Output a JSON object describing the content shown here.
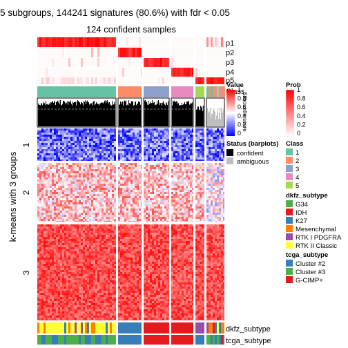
{
  "chart_data": {
    "type": "heatmap",
    "title": "5 subgroups, 144241 signatures (80.6%) with fdr < 0.05",
    "subtitle": "124 confident samples",
    "row_title": "k-means with 3 groups",
    "row_groups": [
      "1",
      "2",
      "3"
    ],
    "top_tracks": [
      "p1",
      "p2",
      "p3",
      "p4",
      "p5",
      "Class",
      "Silhouette score"
    ],
    "bottom_tracks": [
      "dkfz_subtype",
      "tcga_subtype"
    ],
    "sample_groups": [
      {
        "class": "1",
        "color": "#66C2A5"
      },
      {
        "class": "2",
        "color": "#FC8D62"
      },
      {
        "class": "3",
        "color": "#8DA0CB"
      },
      {
        "class": "4",
        "color": "#E78AC3"
      },
      {
        "class": "5",
        "color": "#A6D854"
      }
    ],
    "value_legend": {
      "title": "Value",
      "ticks": [
        "1",
        "0.8",
        "0.6",
        "0.4",
        "0.2",
        "0"
      ]
    },
    "prob_legend": {
      "title": "Prob",
      "ticks": [
        "1",
        "0.8",
        "0.6",
        "0.4",
        "0.2",
        "0"
      ]
    },
    "status_legend": {
      "title": "Status (barplots)",
      "items": [
        {
          "label": "confident",
          "color": "#000000"
        },
        {
          "label": "ambiguous",
          "color": "#BEBEBE"
        }
      ]
    },
    "class_legend": {
      "title": "Class",
      "items": [
        {
          "label": "1",
          "color": "#66C2A5"
        },
        {
          "label": "2",
          "color": "#FC8D62"
        },
        {
          "label": "3",
          "color": "#8DA0CB"
        },
        {
          "label": "4",
          "color": "#E78AC3"
        },
        {
          "label": "5",
          "color": "#A6D854"
        }
      ]
    },
    "dkfz_legend": {
      "title": "dkfz_subtype",
      "items": [
        {
          "label": "G34",
          "color": "#4DAF4A"
        },
        {
          "label": "IDH",
          "color": "#E41A1C"
        },
        {
          "label": "K27",
          "color": "#377EB8"
        },
        {
          "label": "Mesenchymal",
          "color": "#FF7F00"
        },
        {
          "label": "RTK I PDGFRA",
          "color": "#984EA3"
        },
        {
          "label": "RTK II Classic",
          "color": "#FFFF33"
        }
      ]
    },
    "tcga_legend": {
      "title": "tcga_subtype",
      "items": [
        {
          "label": "Cluster #2",
          "color": "#377EB8"
        },
        {
          "label": "Cluster #3",
          "color": "#4DAF4A"
        },
        {
          "label": "G-CIMP+",
          "color": "#E41A1C"
        }
      ]
    },
    "colors": {
      "high": "#FF0000",
      "mid": "#FFFFFF",
      "low": "#0000FF"
    }
  }
}
